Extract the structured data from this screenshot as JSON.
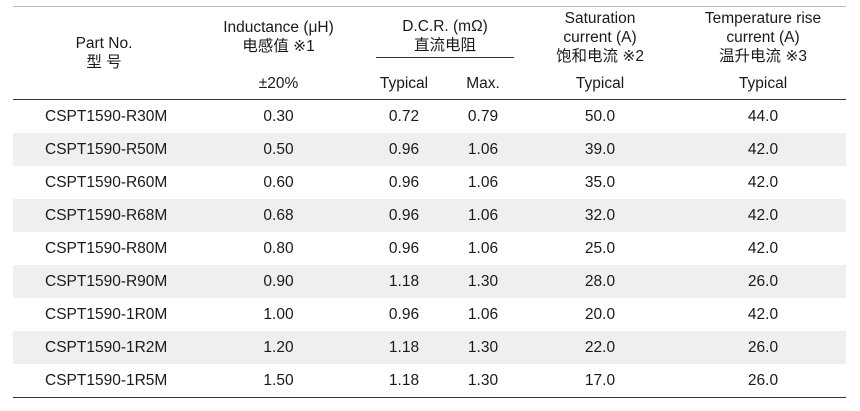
{
  "header": {
    "part_no": "Part No.",
    "part_no_cn": "型  号",
    "inductance": "Inductance (μH)",
    "inductance_cn": "电感值  ※1",
    "inductance_tol": "±20%",
    "dcr": "D.C.R. (mΩ)",
    "dcr_cn": "直流电阻",
    "dcr_typical": "Typical",
    "dcr_max": "Max.",
    "sat_line1": "Saturation",
    "sat_line2": "current (A)",
    "sat_cn": "饱和电流  ※2",
    "sat_typical": "Typical",
    "temp_line1": "Temperature rise",
    "temp_line2": "current (A)",
    "temp_cn": "温升电流  ※3",
    "temp_typical": "Typical"
  },
  "rows": [
    {
      "part": "CSPT1590-R30M",
      "ind": "0.30",
      "dcr_typ": "0.72",
      "dcr_max": "0.79",
      "sat": "50.0",
      "temp": "44.0"
    },
    {
      "part": "CSPT1590-R50M",
      "ind": "0.50",
      "dcr_typ": "0.96",
      "dcr_max": "1.06",
      "sat": "39.0",
      "temp": "42.0"
    },
    {
      "part": "CSPT1590-R60M",
      "ind": "0.60",
      "dcr_typ": "0.96",
      "dcr_max": "1.06",
      "sat": "35.0",
      "temp": "42.0"
    },
    {
      "part": "CSPT1590-R68M",
      "ind": "0.68",
      "dcr_typ": "0.96",
      "dcr_max": "1.06",
      "sat": "32.0",
      "temp": "42.0"
    },
    {
      "part": "CSPT1590-R80M",
      "ind": "0.80",
      "dcr_typ": "0.96",
      "dcr_max": "1.06",
      "sat": "25.0",
      "temp": "42.0"
    },
    {
      "part": "CSPT1590-R90M",
      "ind": "0.90",
      "dcr_typ": "1.18",
      "dcr_max": "1.30",
      "sat": "28.0",
      "temp": "26.0"
    },
    {
      "part": "CSPT1590-1R0M",
      "ind": "1.00",
      "dcr_typ": "0.96",
      "dcr_max": "1.06",
      "sat": "20.0",
      "temp": "42.0"
    },
    {
      "part": "CSPT1590-1R2M",
      "ind": "1.20",
      "dcr_typ": "1.18",
      "dcr_max": "1.30",
      "sat": "22.0",
      "temp": "26.0"
    },
    {
      "part": "CSPT1590-1R5M",
      "ind": "1.50",
      "dcr_typ": "1.18",
      "dcr_max": "1.30",
      "sat": "17.0",
      "temp": "26.0"
    }
  ]
}
